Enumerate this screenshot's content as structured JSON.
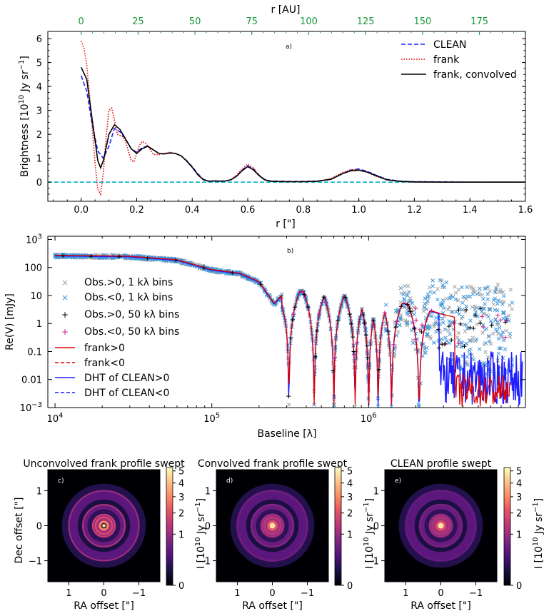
{
  "colors": {
    "clean": "#1f1fff",
    "frank": "#e00000",
    "conv": "#000000",
    "zero": "#00b4c8",
    "obs_pos": "#a0a0a0",
    "obs_neg": "#3a96dc",
    "bin_neg": "#c8168c",
    "top_axis": "#1a9a3a"
  },
  "chart_data": [
    {
      "type": "line",
      "panel_label": "a)",
      "xlabel": "r [\"]",
      "ylabel": "Brightness [10$^{10}$ Jy sr$^{-1}$]",
      "ylabel_parts": [
        "Brightness [10",
        "10",
        " Jy sr",
        "−1",
        "]"
      ],
      "top_xlabel": "r [AU]",
      "xlim": [
        -0.12,
        1.6
      ],
      "ylim": [
        -0.8,
        6.3
      ],
      "xticks": [
        0.0,
        0.2,
        0.4,
        0.6,
        0.8,
        1.0,
        1.2,
        1.4,
        1.6
      ],
      "xtick_labels": [
        "0.0",
        "0.2",
        "0.4",
        "0.6",
        "0.8",
        "1.0",
        "1.2",
        "1.4",
        "1.6"
      ],
      "yticks": [
        0,
        1,
        2,
        3,
        4,
        5,
        6
      ],
      "ytick_labels": [
        "0",
        "1",
        "2",
        "3",
        "4",
        "5",
        "6"
      ],
      "top_ticks_au": [
        0,
        25,
        50,
        75,
        100,
        125,
        150,
        175
      ],
      "top_tick_labels": [
        "0",
        "25",
        "50",
        "75",
        "100",
        "125",
        "150",
        "175"
      ],
      "au_per_arcsec": 122,
      "legend": [
        "CLEAN",
        "frank",
        "frank, convolved"
      ],
      "series": [
        {
          "name": "CLEAN",
          "style": "dashed",
          "x": [
            0.0,
            0.02,
            0.04,
            0.06,
            0.08,
            0.1,
            0.12,
            0.14,
            0.16,
            0.18,
            0.2,
            0.22,
            0.24,
            0.26,
            0.28,
            0.3,
            0.32,
            0.34,
            0.36,
            0.38,
            0.4,
            0.42,
            0.44,
            0.46,
            0.48,
            0.5,
            0.52,
            0.54,
            0.56,
            0.58,
            0.6,
            0.62,
            0.64,
            0.66,
            0.68,
            0.7,
            0.75,
            0.8,
            0.85,
            0.9,
            0.94,
            0.97,
            1.0,
            1.03,
            1.06,
            1.1,
            1.15,
            1.2,
            1.3,
            1.4,
            1.6
          ],
          "y": [
            4.45,
            3.8,
            2.4,
            1.3,
            1.0,
            1.5,
            2.25,
            2.1,
            1.8,
            1.4,
            1.25,
            1.45,
            1.5,
            1.35,
            1.2,
            1.18,
            1.22,
            1.2,
            1.1,
            0.9,
            0.65,
            0.35,
            0.12,
            0.04,
            0.05,
            0.04,
            0.05,
            0.1,
            0.25,
            0.5,
            0.68,
            0.55,
            0.3,
            0.12,
            0.05,
            0.04,
            0.03,
            0.03,
            0.04,
            0.12,
            0.35,
            0.5,
            0.55,
            0.45,
            0.3,
            0.12,
            0.04,
            0.02,
            0.01,
            0.0,
            0.0
          ]
        },
        {
          "name": "frank",
          "style": "dotted",
          "x": [
            0.0,
            0.01,
            0.02,
            0.03,
            0.04,
            0.05,
            0.06,
            0.07,
            0.08,
            0.09,
            0.1,
            0.11,
            0.12,
            0.13,
            0.14,
            0.15,
            0.16,
            0.17,
            0.18,
            0.19,
            0.2,
            0.21,
            0.22,
            0.23,
            0.24,
            0.25,
            0.26,
            0.28,
            0.3,
            0.32,
            0.34,
            0.36,
            0.38,
            0.4,
            0.42,
            0.44,
            0.46,
            0.48,
            0.5,
            0.52,
            0.54,
            0.56,
            0.58,
            0.6,
            0.62,
            0.64,
            0.66,
            0.68,
            0.7,
            0.75,
            0.8,
            0.85,
            0.9,
            0.94,
            0.97,
            1.0,
            1.03,
            1.06,
            1.1,
            1.15,
            1.2,
            1.3,
            1.4,
            1.6
          ],
          "y": [
            5.9,
            5.6,
            4.9,
            3.7,
            2.3,
            0.8,
            -0.3,
            -0.5,
            0.4,
            1.9,
            3.0,
            3.1,
            2.6,
            2.0,
            1.95,
            1.9,
            1.7,
            1.3,
            0.9,
            0.85,
            1.2,
            1.55,
            1.7,
            1.65,
            1.5,
            1.35,
            1.15,
            1.15,
            1.2,
            1.25,
            1.2,
            1.1,
            0.9,
            0.62,
            0.3,
            0.1,
            0.03,
            0.06,
            0.05,
            0.05,
            0.1,
            0.3,
            0.55,
            0.75,
            0.6,
            0.3,
            0.1,
            0.04,
            0.03,
            0.02,
            0.02,
            0.03,
            0.15,
            0.4,
            0.52,
            0.52,
            0.42,
            0.25,
            0.1,
            0.03,
            0.0,
            0.0,
            0.0,
            0.0
          ]
        },
        {
          "name": "frank, convolved",
          "style": "solid",
          "x": [
            0.0,
            0.02,
            0.04,
            0.06,
            0.07,
            0.08,
            0.1,
            0.12,
            0.14,
            0.16,
            0.18,
            0.2,
            0.22,
            0.24,
            0.26,
            0.28,
            0.3,
            0.32,
            0.34,
            0.36,
            0.38,
            0.4,
            0.42,
            0.44,
            0.46,
            0.48,
            0.5,
            0.52,
            0.54,
            0.56,
            0.58,
            0.6,
            0.62,
            0.64,
            0.66,
            0.68,
            0.7,
            0.75,
            0.8,
            0.85,
            0.9,
            0.94,
            0.97,
            1.0,
            1.03,
            1.06,
            1.1,
            1.15,
            1.2,
            1.3,
            1.4,
            1.6
          ],
          "y": [
            4.8,
            4.3,
            2.6,
            0.9,
            0.6,
            0.9,
            2.0,
            2.4,
            2.2,
            1.8,
            1.4,
            1.2,
            1.4,
            1.5,
            1.35,
            1.2,
            1.18,
            1.22,
            1.2,
            1.1,
            0.88,
            0.62,
            0.32,
            0.1,
            0.04,
            0.05,
            0.04,
            0.05,
            0.1,
            0.25,
            0.48,
            0.65,
            0.52,
            0.28,
            0.1,
            0.04,
            0.03,
            0.02,
            0.02,
            0.04,
            0.12,
            0.35,
            0.47,
            0.5,
            0.42,
            0.28,
            0.1,
            0.03,
            0.01,
            0.0,
            0.0,
            0.0
          ]
        }
      ],
      "hline": {
        "y": 0,
        "style": "dashed"
      }
    },
    {
      "type": "line",
      "panel_label": "b)",
      "xscale": "log",
      "yscale": "symlog",
      "xlabel": "Baseline [λ]",
      "ylabel": "Re(V) [mJy]",
      "xlim": [
        9000,
        10000000
      ],
      "ylim": [
        0.001,
        1300
      ],
      "xtick_labels": [
        "10^4",
        "10^5",
        "10^6"
      ],
      "ytick_labels": [
        "10^3",
        "100",
        "10",
        "1",
        "0.1",
        "0.01",
        "10^−3"
      ],
      "xtick_parts": [
        [
          "10",
          "4"
        ],
        [
          "10",
          "5"
        ],
        [
          "10",
          "6"
        ]
      ],
      "ytick_parts": [
        [
          "10",
          "3"
        ],
        [
          "100",
          ""
        ],
        [
          "10",
          ""
        ],
        [
          "1",
          ""
        ],
        [
          "0.1",
          ""
        ],
        [
          "0.01",
          ""
        ],
        [
          "10",
          "−3"
        ]
      ],
      "legend": [
        "Obs.>0, 1 kλ bins",
        "Obs.<0, 1 kλ bins",
        "Obs.>0, 50 kλ bins",
        "Obs.<0, 50 kλ bins",
        "frank>0",
        "frank<0",
        "DHT of CLEAN>0",
        "DHT of CLEAN<0"
      ],
      "nulls": [
        310000,
        450000,
        600000,
        820000,
        1000000,
        1150000,
        1400000,
        2100000
      ],
      "envelope": {
        "x": [
          10000,
          30000,
          60000,
          100000,
          150000,
          200000,
          250000,
          300000,
          500000,
          800000,
          1200000,
          2000000,
          3000000,
          5000000,
          8000000
        ],
        "y": [
          260,
          240,
          180,
          80,
          60,
          30,
          5,
          15,
          12,
          10,
          8,
          4,
          2,
          1,
          0.5
        ]
      }
    },
    {
      "type": "heatmap",
      "panels": [
        {
          "label": "c)",
          "title": "Unconvolved frank profile swept"
        },
        {
          "label": "d)",
          "title": "Convolved frank profile swept"
        },
        {
          "label": "e)",
          "title": "CLEAN profile swept"
        }
      ],
      "xlabel": "RA offset [\"]",
      "ylabel": "Dec offset [\"]",
      "xlim": [
        1.6,
        -1.6
      ],
      "ylim": [
        -1.6,
        1.6
      ],
      "xtick_labels": [
        "1",
        "0",
        "−1"
      ],
      "ytick_labels": [
        "1",
        "0",
        "−1"
      ],
      "colorbar_label_parts": [
        "I [10",
        "10",
        " Jy sr",
        "−1",
        "]"
      ],
      "colorbar_ticks": [
        "0",
        "1",
        "2",
        "3",
        "4",
        "5"
      ],
      "colorbar_lim": [
        0,
        5.3
      ]
    }
  ]
}
